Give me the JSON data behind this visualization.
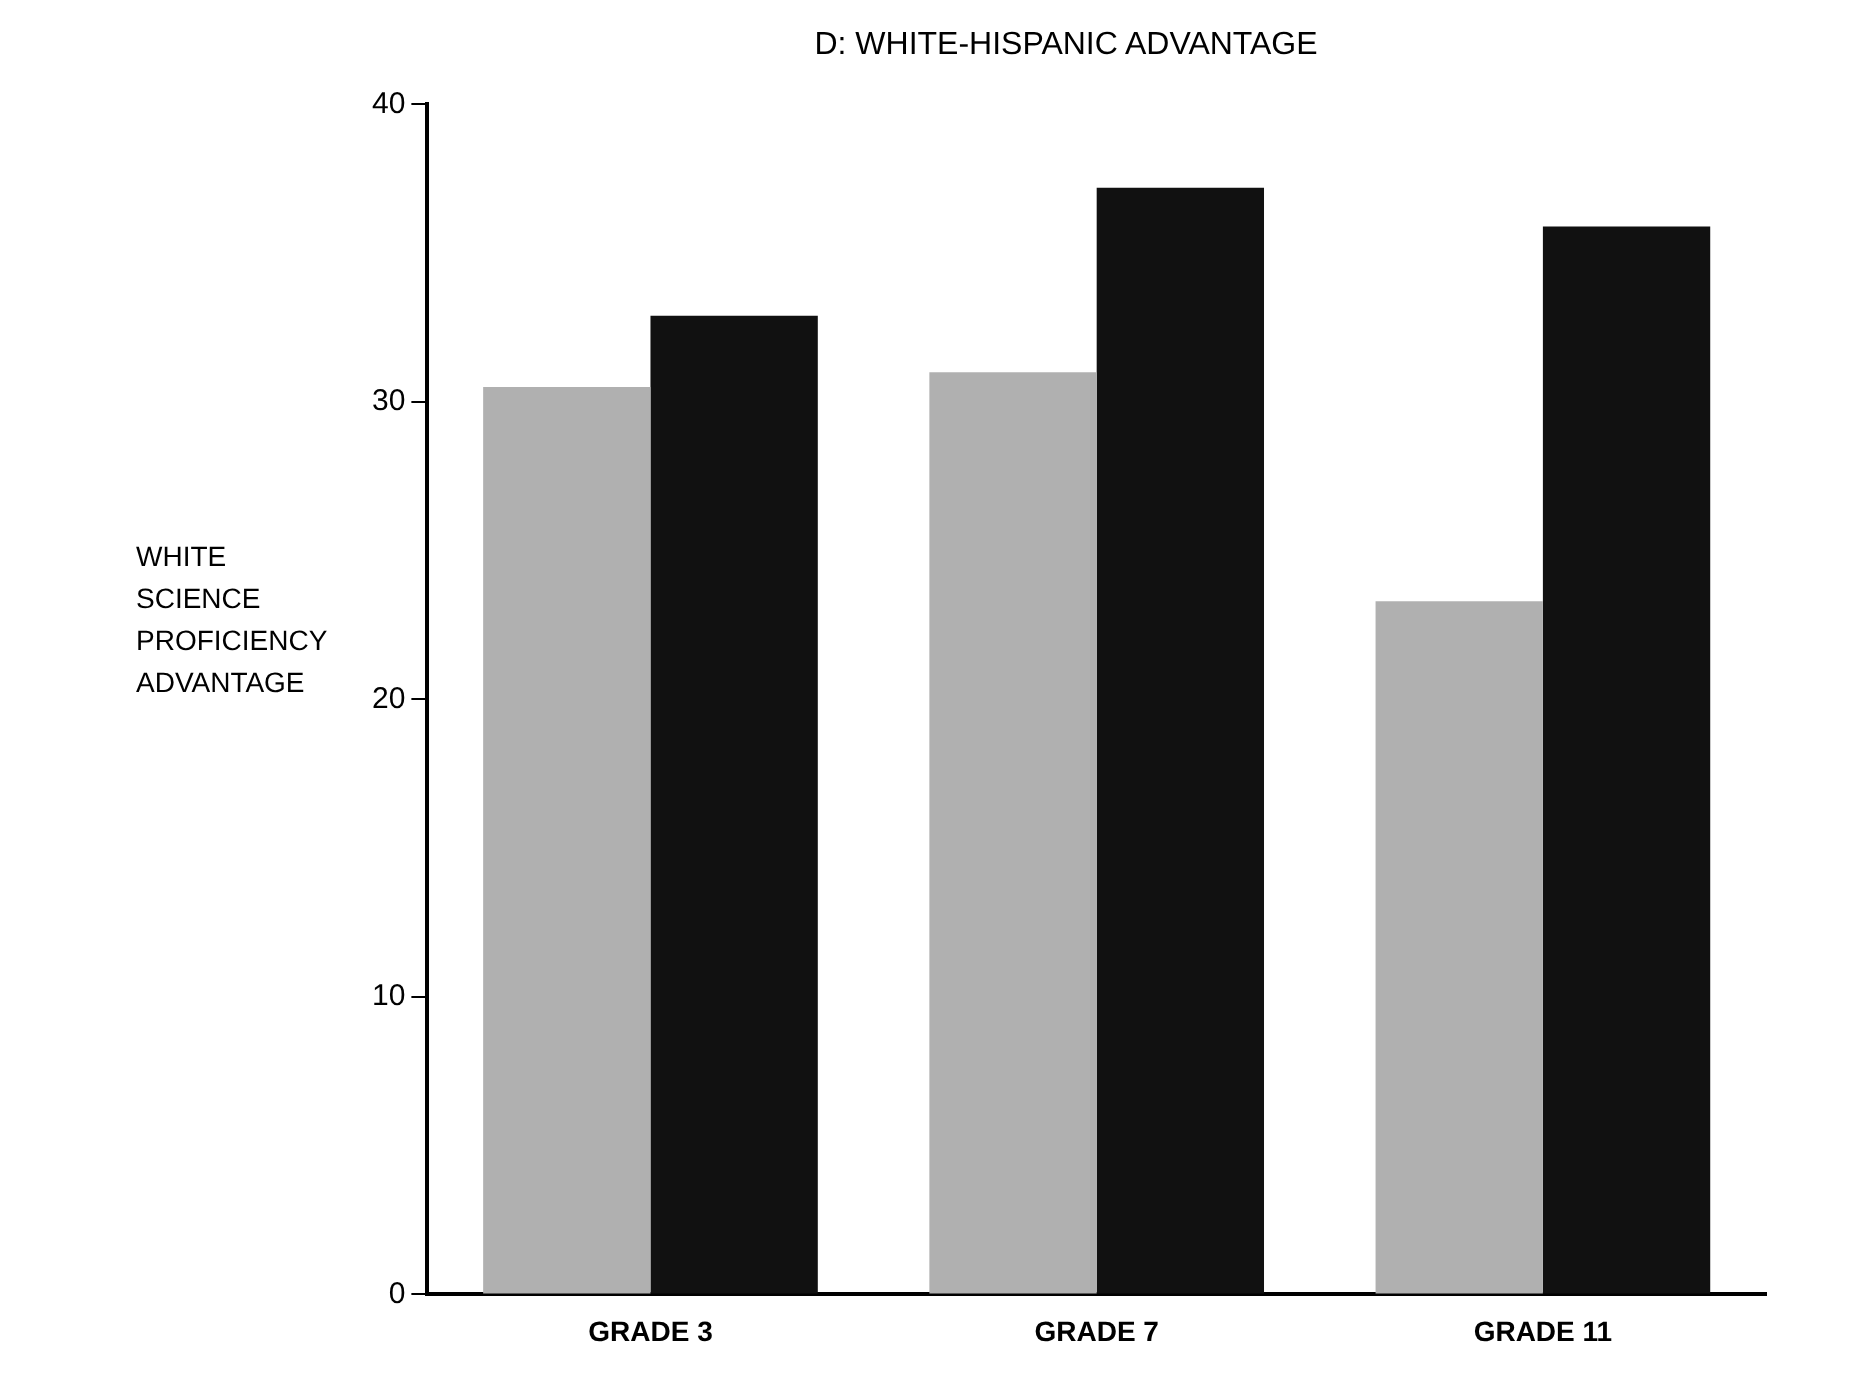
{
  "chart_data": {
    "type": "bar",
    "title": "D: WHITE-HISPANIC ADVANTAGE",
    "ylabel": "WHITE\nSCIENCE\nPROFICIENCY\nADVANTAGE",
    "categories": [
      "GRADE 3",
      "GRADE 7",
      "GRADE 11"
    ],
    "series": [
      {
        "color": "#b0b0b0",
        "values": [
          30.5,
          31,
          23.3
        ]
      },
      {
        "color": "#111111",
        "values": [
          32.9,
          37.2,
          35.9
        ]
      }
    ],
    "ylim": [
      0,
      40
    ],
    "yticks": [
      0,
      10,
      20,
      30,
      40
    ],
    "grid": false,
    "legend": false
  }
}
